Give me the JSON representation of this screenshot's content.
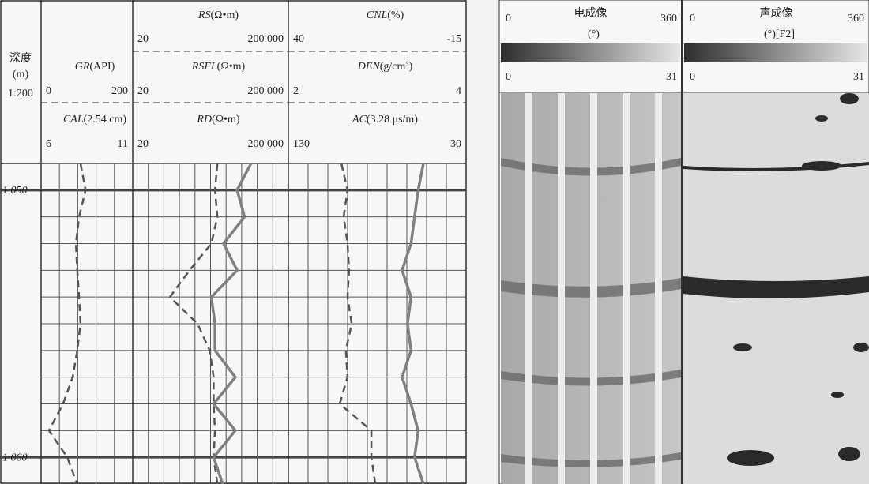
{
  "depth_header": {
    "title": "深度",
    "unit": "(m)",
    "scale": "1:200"
  },
  "chart_data": {
    "type": "well-log",
    "ylim": [
      1049,
      1061
    ],
    "yticks": [
      {
        "value": 1050,
        "label": "1 050"
      },
      {
        "value": 1060,
        "label": "1 060"
      }
    ],
    "depths": [
      1049,
      1050,
      1051,
      1052,
      1053,
      1054,
      1055,
      1056,
      1057,
      1058,
      1059,
      1060,
      1061
    ],
    "tracks": [
      {
        "curves": [
          {
            "name": "GR",
            "unit": "(API)",
            "xlim": [
              0,
              200
            ],
            "xticks": [
              0,
              200
            ],
            "style": "dashed",
            "color": "#555555",
            "values": [
              86,
              97,
              83,
              76,
              79,
              83,
              86,
              79,
              69,
              48,
              17,
              57,
              79
            ]
          },
          {
            "name": "CAL",
            "unit": "(2.54 cm)",
            "xlim": [
              6,
              11
            ],
            "xticks": [
              6,
              11
            ]
          }
        ]
      },
      {
        "log": true,
        "curves": [
          {
            "name": "RS",
            "unit": "(Ω•m)",
            "xlim": [
              20,
              200000
            ],
            "xticks": [
              20,
              {
                "value": 200000,
                "label": "200 000"
              }
            ]
          },
          {
            "name": "RSFL",
            "unit": "(Ω•m)",
            "xlim": [
              20,
              200000
            ],
            "xticks": [
              20,
              {
                "value": 200000,
                "label": "200 000"
              }
            ],
            "style": "dashed",
            "color": "#555555",
            "values": [
              3000,
              2600,
              3000,
              2100,
              580,
              180,
              930,
              1900,
              2400,
              2400,
              2600,
              2400,
              3000
            ]
          },
          {
            "name": "RD",
            "unit": "(Ω•m)",
            "xlim": [
              20,
              200000
            ],
            "xticks": [
              20,
              {
                "value": 200000,
                "label": "200 000"
              }
            ],
            "style": "solid",
            "color": "#808080",
            "values": [
              22000,
              9600,
              15000,
              4300,
              9600,
              2100,
              2600,
              2600,
              8700,
              2400,
              8700,
              2400,
              4100
            ]
          }
        ]
      },
      {
        "curves": [
          {
            "name": "CNL",
            "unit": "(%)",
            "xlim": [
              40,
              -15
            ],
            "xticks": [
              40,
              -15
            ],
            "style": "dashed",
            "color": "#555555",
            "values": [
              23.6,
              21.7,
              22.9,
              21.7,
              21.2,
              21.7,
              20.4,
              22.2,
              21.7,
              24.1,
              14.3,
              14.3,
              13.1
            ]
          },
          {
            "name": "DEN",
            "unit": "(g/cm³)",
            "xlim": [
              2,
              4
            ],
            "xticks": [
              2,
              4
            ]
          },
          {
            "name": "AC",
            "unit": "(3.28 μs/m)",
            "xlim": [
              130,
              30
            ],
            "xticks": [
              130,
              30
            ],
            "style": "solid",
            "color": "#808080",
            "values": [
              54,
              57,
              59,
              61,
              66,
              61,
              63,
              61,
              66,
              61,
              57,
              59,
              54
            ]
          }
        ]
      }
    ]
  },
  "images": [
    {
      "title": "电成像",
      "unit": "(°)",
      "xlim": [
        0,
        360
      ],
      "colorbar": [
        0,
        31
      ]
    },
    {
      "title": "声成像",
      "unit": "(°)[F2]",
      "xlim": [
        0,
        360
      ],
      "colorbar": [
        0,
        31
      ]
    }
  ]
}
